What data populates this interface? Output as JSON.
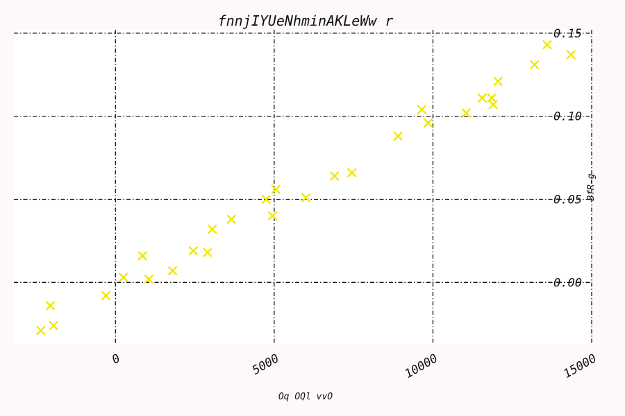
{
  "chart_data": {
    "type": "scatter",
    "title": "fnnjIYUeNhminAKLeWw r",
    "xlabel": "Oq OQl vvO",
    "ylabel": "BfR-g",
    "xlim": [
      -3200,
      15000
    ],
    "ylim": [
      -0.037,
      0.152
    ],
    "xticks": [
      0,
      5000,
      10000,
      15000
    ],
    "xtick_labels": [
      "0",
      "5000",
      "10000",
      "15000"
    ],
    "yticks": [
      0.0,
      0.05,
      0.1,
      0.15
    ],
    "ytick_labels": [
      "0.00",
      "0.05",
      "0.10",
      "0.15"
    ],
    "grid": true,
    "y_axis_side": "right",
    "marker": "x",
    "color": "#f0e800",
    "points": [
      {
        "x": -2350,
        "y": -0.029
      },
      {
        "x": -2050,
        "y": -0.014
      },
      {
        "x": -1950,
        "y": -0.026
      },
      {
        "x": -300,
        "y": -0.008
      },
      {
        "x": 250,
        "y": 0.003
      },
      {
        "x": 850,
        "y": 0.016
      },
      {
        "x": 1050,
        "y": 0.002
      },
      {
        "x": 1800,
        "y": 0.007
      },
      {
        "x": 2450,
        "y": 0.019
      },
      {
        "x": 2900,
        "y": 0.018
      },
      {
        "x": 3050,
        "y": 0.032
      },
      {
        "x": 3650,
        "y": 0.038
      },
      {
        "x": 4750,
        "y": 0.05
      },
      {
        "x": 4950,
        "y": 0.04
      },
      {
        "x": 5050,
        "y": 0.056
      },
      {
        "x": 6000,
        "y": 0.051
      },
      {
        "x": 6900,
        "y": 0.064
      },
      {
        "x": 7450,
        "y": 0.066
      },
      {
        "x": 8900,
        "y": 0.088
      },
      {
        "x": 9650,
        "y": 0.104
      },
      {
        "x": 9850,
        "y": 0.096
      },
      {
        "x": 11050,
        "y": 0.102
      },
      {
        "x": 11550,
        "y": 0.111
      },
      {
        "x": 11850,
        "y": 0.111
      },
      {
        "x": 11900,
        "y": 0.107
      },
      {
        "x": 12050,
        "y": 0.121
      },
      {
        "x": 13200,
        "y": 0.131
      },
      {
        "x": 13600,
        "y": 0.143
      },
      {
        "x": 14350,
        "y": 0.137
      }
    ]
  }
}
